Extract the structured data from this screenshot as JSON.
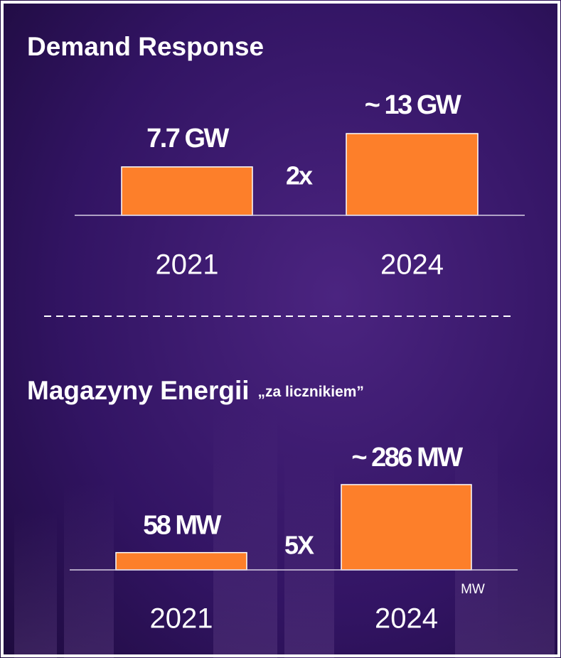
{
  "chart_data": [
    {
      "type": "bar",
      "title": "Demand Response",
      "categories": [
        "2021",
        "2024"
      ],
      "values": [
        7.7,
        13
      ],
      "value_labels": [
        "7.7 GW",
        "~ 13 GW"
      ],
      "color": "#fd7f2a",
      "annotation": "2x"
    },
    {
      "type": "bar",
      "title": "Magazyny Energii",
      "subtitle": "„za licznikiem”",
      "categories": [
        "2021",
        "2024"
      ],
      "values": [
        58,
        286
      ],
      "value_labels": [
        "58 MW",
        "~ 286 MW"
      ],
      "color": "#fd7f2a",
      "annotation": "5X",
      "y_label": "MW"
    }
  ]
}
